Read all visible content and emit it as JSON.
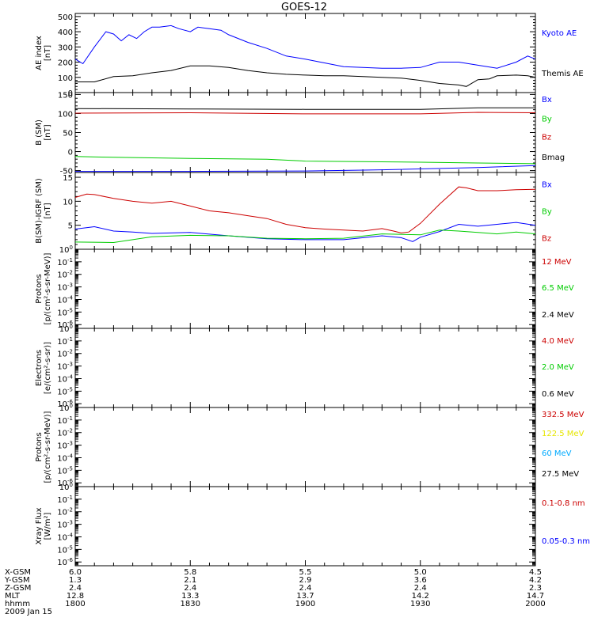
{
  "title": "GOES-12",
  "colors": {
    "black": "#000000",
    "blue": "#0000ff",
    "green": "#00cc00",
    "red": "#cc0000",
    "yellow": "#e6e600",
    "cyan": "#00aaff"
  },
  "chart_data": [
    {
      "type": "line",
      "ylabel": [
        "AE index",
        "[nT]"
      ],
      "ylim": [
        0,
        520
      ],
      "yticks": [
        {
          "v": 0,
          "label": "0"
        },
        {
          "v": 100,
          "label": "100"
        },
        {
          "v": 200,
          "label": "200"
        },
        {
          "v": 300,
          "label": "300"
        },
        {
          "v": 400,
          "label": "400"
        },
        {
          "v": 500,
          "label": "500"
        }
      ],
      "series": [
        {
          "name": "Kyoto AE",
          "color": "#0000ff",
          "x": [
            1800,
            1802,
            1805,
            1808,
            1810,
            1812,
            1814,
            1816,
            1818,
            1820,
            1822,
            1825,
            1827,
            1830,
            1832,
            1835,
            1838,
            1840,
            1845,
            1850,
            1855,
            1900,
            1905,
            1910,
            1915,
            1920,
            1925,
            1930,
            1935,
            1940,
            1945,
            1950,
            1955,
            1958,
            2000
          ],
          "y": [
            220,
            190,
            300,
            400,
            385,
            340,
            380,
            355,
            400,
            430,
            430,
            440,
            420,
            400,
            430,
            420,
            410,
            380,
            330,
            290,
            240,
            220,
            195,
            170,
            165,
            160,
            160,
            165,
            200,
            200,
            180,
            160,
            200,
            240,
            220
          ]
        },
        {
          "name": "Themis AE",
          "color": "#000000",
          "x": [
            1800,
            1805,
            1810,
            1815,
            1820,
            1825,
            1830,
            1835,
            1840,
            1845,
            1850,
            1855,
            1900,
            1905,
            1910,
            1915,
            1920,
            1925,
            1930,
            1935,
            1940,
            1942,
            1945,
            1948,
            1950,
            1955,
            1958,
            2000
          ],
          "y": [
            70,
            70,
            105,
            110,
            130,
            145,
            175,
            175,
            165,
            145,
            130,
            120,
            115,
            110,
            110,
            105,
            100,
            95,
            80,
            60,
            50,
            40,
            85,
            90,
            110,
            115,
            110,
            100
          ]
        }
      ],
      "legend": [
        {
          "text": "Kyoto AE",
          "color": "#0000ff",
          "pos": 0.24
        },
        {
          "text": "Themis AE",
          "color": "#000000",
          "pos": 0.75
        }
      ]
    },
    {
      "type": "line",
      "ylabel": [
        "B (SM)",
        "[nT]"
      ],
      "ylim": [
        -55,
        155
      ],
      "yticks": [
        {
          "v": -50,
          "label": "-50"
        },
        {
          "v": 0,
          "label": "0"
        },
        {
          "v": 50,
          "label": "50"
        },
        {
          "v": 100,
          "label": "100"
        },
        {
          "v": 150,
          "label": "150"
        }
      ],
      "series": [
        {
          "name": "Bmag",
          "color": "#000000",
          "x": [
            1800,
            1830,
            1900,
            1930,
            1945,
            2000
          ],
          "y": [
            113,
            112,
            111,
            111,
            115,
            115
          ]
        },
        {
          "name": "Bz",
          "color": "#cc0000",
          "x": [
            1800,
            1830,
            1900,
            1930,
            1945,
            2000
          ],
          "y": [
            101,
            102,
            99,
            99,
            103,
            102
          ]
        },
        {
          "name": "By",
          "color": "#00cc00",
          "x": [
            1800,
            1810,
            1830,
            1850,
            1900,
            1930,
            1945,
            2000
          ],
          "y": [
            -13,
            -15,
            -18,
            -20,
            -25,
            -28,
            -30,
            -32
          ]
        },
        {
          "name": "Bx",
          "color": "#0000ff",
          "x": [
            1800,
            1830,
            1900,
            1920,
            1945,
            2000
          ],
          "y": [
            -52,
            -52,
            -51,
            -48,
            -42,
            -37
          ]
        }
      ],
      "legend": [
        {
          "text": "Bx",
          "color": "#0000ff",
          "pos": 0.08
        },
        {
          "text": "By",
          "color": "#00cc00",
          "pos": 0.32
        },
        {
          "text": "Bz",
          "color": "#cc0000",
          "pos": 0.55
        },
        {
          "text": "Bmag",
          "color": "#000000",
          "pos": 0.8
        }
      ]
    },
    {
      "type": "line",
      "ylabel": [
        "B(SM)-IGRF (SM)",
        "[nT]"
      ],
      "ylim": [
        0,
        16
      ],
      "yticks": [
        {
          "v": 5,
          "label": "5"
        },
        {
          "v": 10,
          "label": "10"
        },
        {
          "v": 15,
          "label": "15"
        }
      ],
      "series": [
        {
          "name": "Bz",
          "color": "#cc0000",
          "x": [
            1800,
            1803,
            1805,
            1810,
            1815,
            1820,
            1825,
            1830,
            1835,
            1840,
            1845,
            1850,
            1855,
            1900,
            1905,
            1910,
            1915,
            1920,
            1923,
            1925,
            1927,
            1930,
            1935,
            1940,
            1942,
            1945,
            1950,
            1955,
            2000
          ],
          "y": [
            10.8,
            11.5,
            11.4,
            10.6,
            10,
            9.6,
            10,
            9,
            8,
            7.6,
            7,
            6.4,
            5.2,
            4.5,
            4.2,
            4,
            3.8,
            4.3,
            3.8,
            3.4,
            3.6,
            5.4,
            9.4,
            13,
            12.8,
            12.2,
            12.2,
            12.4,
            12.5
          ]
        },
        {
          "name": "Bx",
          "color": "#0000ff",
          "x": [
            1800,
            1805,
            1810,
            1815,
            1820,
            1830,
            1840,
            1850,
            1900,
            1910,
            1920,
            1925,
            1928,
            1930,
            1935,
            1940,
            1945,
            1950,
            1955,
            2000
          ],
          "y": [
            4.2,
            4.7,
            3.8,
            3.6,
            3.3,
            3.5,
            2.8,
            2.2,
            2,
            2,
            2.8,
            2.4,
            1.6,
            2.5,
            3.7,
            5.2,
            4.8,
            5.2,
            5.6,
            5.0
          ]
        },
        {
          "name": "By",
          "color": "#00cc00",
          "x": [
            1800,
            1810,
            1815,
            1820,
            1830,
            1840,
            1850,
            1900,
            1910,
            1920,
            1930,
            1935,
            1940,
            1945,
            1950,
            1955,
            2000
          ],
          "y": [
            1.5,
            1.4,
            2,
            2.6,
            2.9,
            2.8,
            2.3,
            2.2,
            2.3,
            3.2,
            3,
            4,
            3.8,
            3.5,
            3.2,
            3.6,
            3.2
          ]
        }
      ],
      "legend": [
        {
          "text": "Bx",
          "color": "#0000ff",
          "pos": 0.15
        },
        {
          "text": "By",
          "color": "#00cc00",
          "pos": 0.5
        },
        {
          "text": "Bz",
          "color": "#cc0000",
          "pos": 0.85
        }
      ]
    },
    {
      "type": "line",
      "log": true,
      "ylabel": [
        "Protons",
        "[p/(cm²-s-sr-MeV)]"
      ],
      "ylim": [
        -6.3,
        0
      ],
      "yticks": [
        {
          "v": 0,
          "label": "10^0"
        },
        {
          "v": -1,
          "label": "10^-1"
        },
        {
          "v": -2,
          "label": "10^-2"
        },
        {
          "v": -3,
          "label": "10^-3"
        },
        {
          "v": -4,
          "label": "10^-4"
        },
        {
          "v": -5,
          "label": "10^-5"
        },
        {
          "v": -6,
          "label": "10^-6"
        }
      ],
      "series": [],
      "legend": [
        {
          "text": "12 MeV",
          "color": "#cc0000",
          "pos": 0.15
        },
        {
          "text": "6.5 MeV",
          "color": "#00cc00",
          "pos": 0.48
        },
        {
          "text": "2.4 MeV",
          "color": "#000000",
          "pos": 0.82
        }
      ]
    },
    {
      "type": "line",
      "log": true,
      "ylabel": [
        "Electrons",
        "[e/(cm²-s-sr)]"
      ],
      "ylim": [
        -6.3,
        0
      ],
      "yticks": [
        {
          "v": 0,
          "label": "10^0"
        },
        {
          "v": -1,
          "label": "10^-1"
        },
        {
          "v": -2,
          "label": "10^-2"
        },
        {
          "v": -3,
          "label": "10^-3"
        },
        {
          "v": -4,
          "label": "10^-4"
        },
        {
          "v": -5,
          "label": "10^-5"
        },
        {
          "v": -6,
          "label": "10^-6"
        }
      ],
      "series": [],
      "legend": [
        {
          "text": "4.0 MeV",
          "color": "#cc0000",
          "pos": 0.15
        },
        {
          "text": "2.0 MeV",
          "color": "#00cc00",
          "pos": 0.48
        },
        {
          "text": "0.6 MeV",
          "color": "#000000",
          "pos": 0.82
        }
      ]
    },
    {
      "type": "line",
      "log": true,
      "ylabel": [
        "Protons",
        "[p/(cm²-s-sr-MeV)]"
      ],
      "ylim": [
        -6.3,
        0
      ],
      "yticks": [
        {
          "v": 0,
          "label": "10^0"
        },
        {
          "v": -1,
          "label": "10^-1"
        },
        {
          "v": -2,
          "label": "10^-2"
        },
        {
          "v": -3,
          "label": "10^-3"
        },
        {
          "v": -4,
          "label": "10^-4"
        },
        {
          "v": -5,
          "label": "10^-5"
        },
        {
          "v": -6,
          "label": "10^-6"
        }
      ],
      "series": [],
      "legend": [
        {
          "text": "332.5 MeV",
          "color": "#cc0000",
          "pos": 0.08
        },
        {
          "text": "122.5 MeV",
          "color": "#e6e600",
          "pos": 0.32
        },
        {
          "text": "60 MeV",
          "color": "#00aaff",
          "pos": 0.57
        },
        {
          "text": "27.5 MeV",
          "color": "#000000",
          "pos": 0.83
        }
      ]
    },
    {
      "type": "line",
      "log": true,
      "ylabel": [
        "Xray Flux",
        "[W/m²]"
      ],
      "ylim": [
        -6.3,
        0
      ],
      "yticks": [
        {
          "v": 0,
          "label": "10^0"
        },
        {
          "v": -1,
          "label": "10^-1"
        },
        {
          "v": -2,
          "label": "10^-2"
        },
        {
          "v": -3,
          "label": "10^-3"
        },
        {
          "v": -4,
          "label": "10^-4"
        },
        {
          "v": -5,
          "label": "10^-5"
        },
        {
          "v": -6,
          "label": "10^-6"
        }
      ],
      "series": [],
      "legend": [
        {
          "text": "0.1-0.8 nm",
          "color": "#cc0000",
          "pos": 0.2
        },
        {
          "text": "0.05-0.3 nm",
          "color": "#0000ff",
          "pos": 0.68
        }
      ]
    }
  ],
  "xaxis": {
    "range": [
      1800,
      2000
    ],
    "ticks": [
      1800,
      1830,
      1900,
      1930,
      2000
    ],
    "rows": [
      {
        "label": "X-GSM",
        "values": [
          "6.0",
          "5.8",
          "5.5",
          "5.0",
          "4.5"
        ]
      },
      {
        "label": "Y-GSM",
        "values": [
          "1.3",
          "2.1",
          "2.9",
          "3.6",
          "4.2"
        ]
      },
      {
        "label": "Z-GSM",
        "values": [
          "2.4",
          "2.4",
          "2.4",
          "2.4",
          "2.3"
        ]
      },
      {
        "label": "MLT",
        "values": [
          "12.8",
          "13.3",
          "13.7",
          "14.2",
          "14.7"
        ]
      },
      {
        "label": "hhmm",
        "values": [
          "1800",
          "1830",
          "1900",
          "1930",
          "2000"
        ]
      }
    ],
    "date": "2009 Jan 15"
  }
}
